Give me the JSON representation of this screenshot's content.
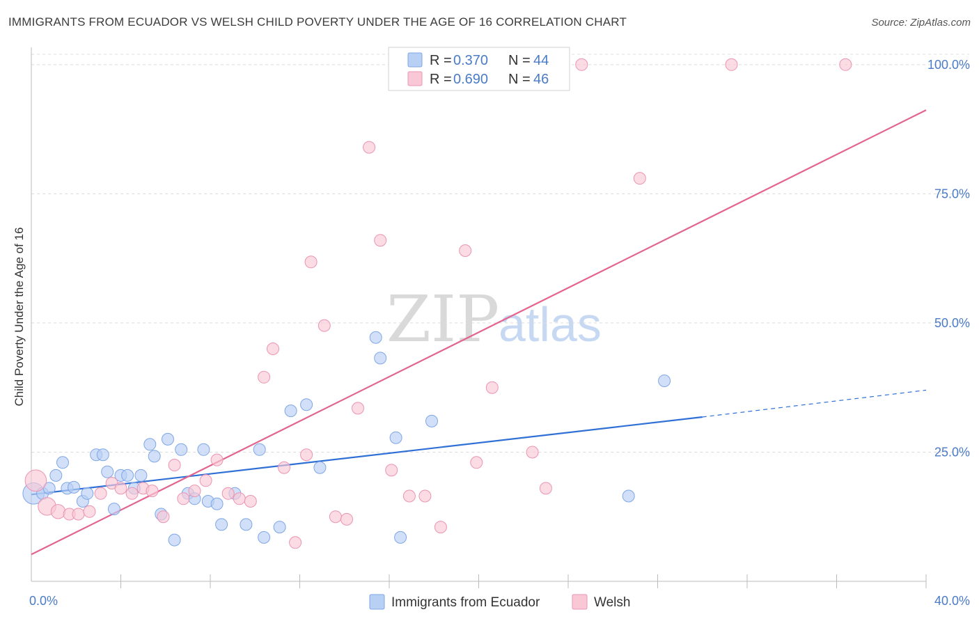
{
  "header": {
    "title": "IMMIGRANTS FROM ECUADOR VS WELSH CHILD POVERTY UNDER THE AGE OF 16 CORRELATION CHART",
    "source": "Source: ZipAtlas.com"
  },
  "watermark": {
    "zip": "ZIP",
    "atlas": "atlas"
  },
  "colors": {
    "ecuador_fill": "#b9d0f5",
    "ecuador_stroke": "#7ea6e6",
    "ecuador_line": "#2f6fd6",
    "welsh_fill": "#f9c7d6",
    "welsh_stroke": "#eb94b1",
    "welsh_line": "#e2648f",
    "tick_label": "#4a7bc8",
    "grid": "#dcdcdc"
  },
  "chart_data": {
    "type": "scatter",
    "title": "IMMIGRANTS FROM ECUADOR VS WELSH CHILD POVERTY UNDER THE AGE OF 16 CORRELATION CHART",
    "xlabel": "",
    "ylabel": "Child Poverty Under the Age of 16",
    "xlim": [
      0,
      40
    ],
    "ylim": [
      0,
      102
    ],
    "x_tick_labels": [
      "0.0%",
      "40.0%"
    ],
    "y_ticks": [
      25,
      50,
      75,
      100
    ],
    "y_tick_labels": [
      "25.0%",
      "50.0%",
      "75.0%",
      "100.0%"
    ],
    "grid": true,
    "legend_position": "top-center",
    "legend": [
      {
        "r_label": "R = ",
        "r_value": "0.370",
        "n_label": "N = ",
        "n_value": "44"
      },
      {
        "r_label": "R = ",
        "r_value": "0.690",
        "n_label": "N = ",
        "n_value": "46"
      }
    ],
    "series": [
      {
        "name": "Immigrants from Ecuador",
        "color": "#b9d0f5",
        "trend": {
          "x0": 0,
          "y0": 16.8,
          "x1": 30,
          "y1": 31.8,
          "dashed_to_x": 40,
          "dashed_to_y": 37.0
        },
        "points": [
          [
            0.1,
            17.0,
            1.8
          ],
          [
            0.5,
            17.0,
            1
          ],
          [
            0.8,
            18.0,
            1
          ],
          [
            1.1,
            20.5,
            1
          ],
          [
            1.4,
            23.0,
            1
          ],
          [
            1.6,
            18.0,
            1
          ],
          [
            1.9,
            18.2,
            1
          ],
          [
            2.3,
            15.5,
            1
          ],
          [
            2.5,
            17.0,
            1
          ],
          [
            2.9,
            24.5,
            1
          ],
          [
            3.2,
            24.5,
            1
          ],
          [
            3.4,
            21.2,
            1
          ],
          [
            3.7,
            14.0,
            1
          ],
          [
            4.0,
            20.5,
            1
          ],
          [
            4.3,
            20.5,
            1
          ],
          [
            4.6,
            18.0,
            1
          ],
          [
            4.9,
            20.5,
            1
          ],
          [
            5.3,
            26.5,
            1
          ],
          [
            5.5,
            24.2,
            1
          ],
          [
            5.8,
            13.0,
            1
          ],
          [
            6.1,
            27.5,
            1
          ],
          [
            6.4,
            8.0,
            1
          ],
          [
            6.7,
            25.5,
            1
          ],
          [
            7.0,
            17.0,
            1
          ],
          [
            7.3,
            16.0,
            1
          ],
          [
            7.7,
            25.5,
            1
          ],
          [
            7.9,
            15.5,
            1
          ],
          [
            8.3,
            15.0,
            1
          ],
          [
            8.5,
            11.0,
            1
          ],
          [
            9.1,
            17.0,
            1
          ],
          [
            9.6,
            11.0,
            1
          ],
          [
            10.2,
            25.5,
            1
          ],
          [
            10.4,
            8.5,
            1
          ],
          [
            11.1,
            10.5,
            1
          ],
          [
            11.6,
            33.0,
            1
          ],
          [
            12.3,
            34.2,
            1
          ],
          [
            12.9,
            22.0,
            1
          ],
          [
            15.4,
            47.2,
            1
          ],
          [
            15.6,
            43.2,
            1
          ],
          [
            16.3,
            27.8,
            1
          ],
          [
            16.5,
            8.5,
            1
          ],
          [
            17.9,
            31.0,
            1
          ],
          [
            26.7,
            16.5,
            1
          ],
          [
            28.3,
            38.8,
            1
          ]
        ]
      },
      {
        "name": "Welsh",
        "color": "#f9c7d6",
        "trend": {
          "x0": 0,
          "y0": 5.2,
          "x1": 40,
          "y1": 91.2
        },
        "points": [
          [
            0.2,
            19.5,
            1.8
          ],
          [
            0.7,
            14.5,
            1.5
          ],
          [
            1.2,
            13.5,
            1.2
          ],
          [
            1.7,
            13.0,
            1
          ],
          [
            2.1,
            13.0,
            1
          ],
          [
            2.6,
            13.5,
            1
          ],
          [
            3.1,
            17.0,
            1
          ],
          [
            3.6,
            19.0,
            1
          ],
          [
            4.0,
            18.0,
            1
          ],
          [
            4.5,
            17.0,
            1
          ],
          [
            5.0,
            18.0,
            1
          ],
          [
            5.4,
            17.5,
            1
          ],
          [
            5.9,
            12.5,
            1
          ],
          [
            6.4,
            22.5,
            1
          ],
          [
            6.8,
            16.0,
            1
          ],
          [
            7.3,
            17.5,
            1
          ],
          [
            7.8,
            19.5,
            1
          ],
          [
            8.3,
            23.5,
            1
          ],
          [
            8.8,
            17.0,
            1
          ],
          [
            9.3,
            16.0,
            1
          ],
          [
            9.8,
            15.5,
            1
          ],
          [
            10.4,
            39.5,
            1
          ],
          [
            10.8,
            45.0,
            1
          ],
          [
            11.3,
            22.0,
            1
          ],
          [
            11.8,
            7.5,
            1
          ],
          [
            12.3,
            24.5,
            1
          ],
          [
            12.5,
            61.8,
            1
          ],
          [
            13.1,
            49.5,
            1
          ],
          [
            13.6,
            12.5,
            1
          ],
          [
            14.1,
            12.0,
            1
          ],
          [
            14.6,
            33.5,
            1
          ],
          [
            15.1,
            84.0,
            1
          ],
          [
            15.6,
            66.0,
            1
          ],
          [
            16.1,
            21.5,
            1
          ],
          [
            16.9,
            16.5,
            1
          ],
          [
            17.6,
            16.5,
            1
          ],
          [
            18.3,
            10.5,
            1
          ],
          [
            19.4,
            64.0,
            1
          ],
          [
            19.9,
            23.0,
            1
          ],
          [
            20.6,
            37.5,
            1
          ],
          [
            22.4,
            25.0,
            1
          ],
          [
            23.0,
            18.0,
            1
          ],
          [
            24.6,
            100.0,
            1
          ],
          [
            27.2,
            78.0,
            1
          ],
          [
            31.3,
            100.0,
            1
          ],
          [
            36.4,
            100.0,
            1
          ]
        ]
      }
    ]
  },
  "bottom_legend": {
    "items": [
      "Immigrants from Ecuador",
      "Welsh"
    ]
  }
}
